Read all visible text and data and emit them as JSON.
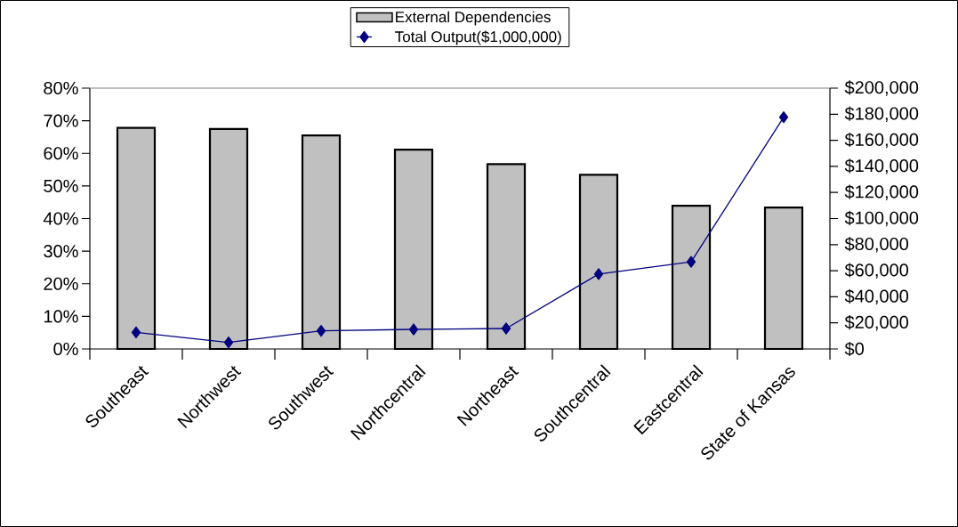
{
  "chart_data": {
    "type": "bar",
    "categories": [
      "Southeast",
      "Northwest",
      "Southwest",
      "Northcentral",
      "Northeast",
      "Southcentral",
      "Eastcentral",
      "State of Kansas"
    ],
    "series": [
      {
        "name": "External Dependencies",
        "color": "#c0c0c0",
        "values": [
          67.8,
          67.5,
          65.5,
          61.1,
          56.7,
          53.4,
          43.9,
          43.4
        ]
      },
      {
        "name": "Total Output($1,000,000)",
        "type": "line",
        "axis": "y2",
        "color": "#000080",
        "values": [
          12700,
          5000,
          13900,
          15000,
          15700,
          57400,
          66800,
          177700
        ]
      }
    ],
    "ylim": [
      0,
      80
    ],
    "yticks": [
      {
        "value": 0,
        "label": "0%"
      },
      {
        "value": 10,
        "label": "10%"
      },
      {
        "value": 20,
        "label": "20%"
      },
      {
        "value": 30,
        "label": "30%"
      },
      {
        "value": 40,
        "label": "40%"
      },
      {
        "value": 50,
        "label": "50%"
      },
      {
        "value": 60,
        "label": "60%"
      },
      {
        "value": 70,
        "label": "70%"
      },
      {
        "value": 80,
        "label": "80%"
      }
    ],
    "y2lim": [
      0,
      200000
    ],
    "y2ticks": [
      {
        "value": 0,
        "label": "$0"
      },
      {
        "value": 20000,
        "label": "$20,000"
      },
      {
        "value": 40000,
        "label": "$40,000"
      },
      {
        "value": 60000,
        "label": "$60,000"
      },
      {
        "value": 80000,
        "label": "$80,000"
      },
      {
        "value": 100000,
        "label": "$100,000"
      },
      {
        "value": 120000,
        "label": "$120,000"
      },
      {
        "value": 140000,
        "label": "$140,000"
      },
      {
        "value": 160000,
        "label": "$160,000"
      },
      {
        "value": 180000,
        "label": "$180,000"
      },
      {
        "value": 200000,
        "label": "$200,000"
      }
    ],
    "marker": "diamond",
    "legend": "top",
    "grid": false
  }
}
